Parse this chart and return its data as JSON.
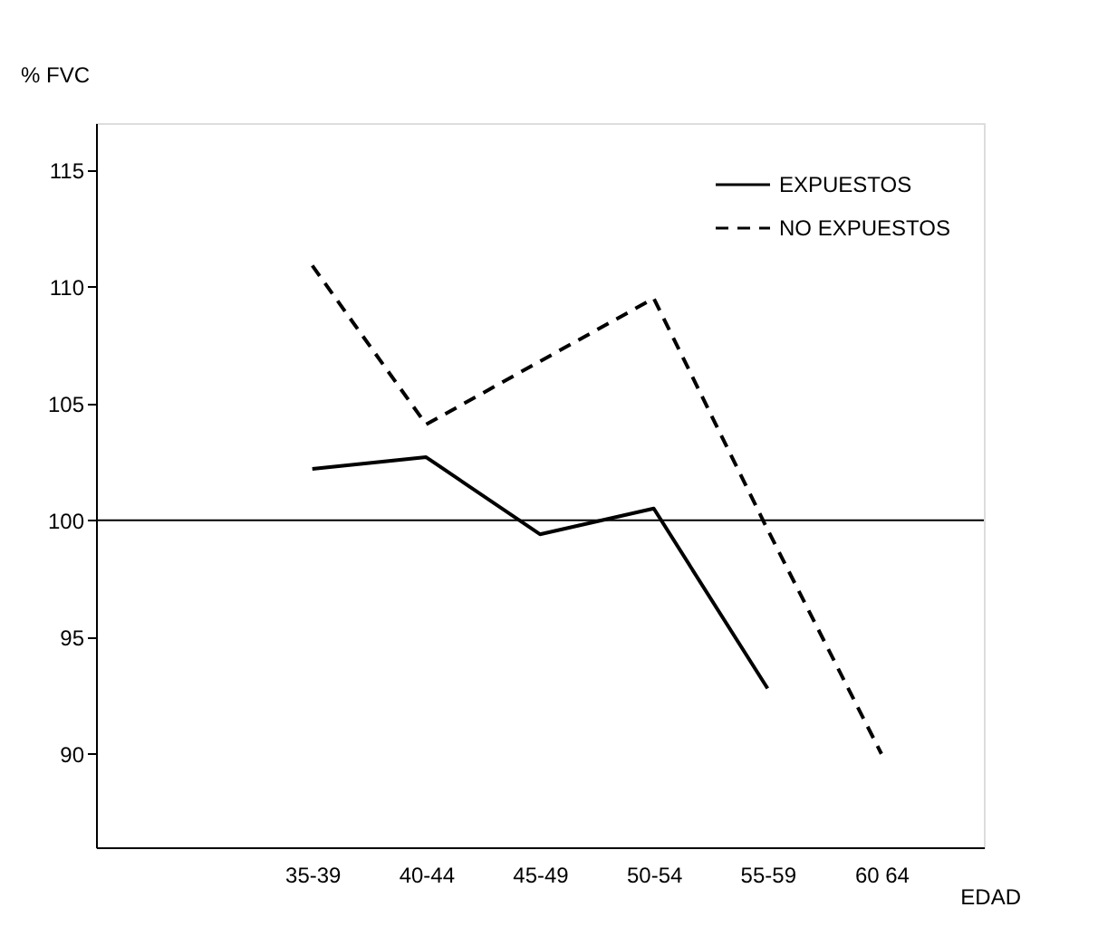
{
  "chart_data": {
    "type": "line",
    "xlabel": "EDAD",
    "ylabel": "% FVC",
    "categories": [
      "35-39",
      "40-44",
      "45-49",
      "50-54",
      "55-59",
      "60 64"
    ],
    "series": [
      {
        "name": "EXPUESTOS",
        "color": "#000000",
        "line_style": "solid",
        "values": [
          102.2,
          102.7,
          99.4,
          100.5,
          92.8,
          null
        ]
      },
      {
        "name": "NO EXPUESTOS",
        "color": "#000000",
        "line_style": "dashed",
        "values": [
          110.9,
          104.1,
          106.8,
          109.5,
          99.6,
          90.0
        ]
      }
    ],
    "ylim": [
      86,
      117
    ],
    "yticks": [
      90,
      95,
      100,
      105,
      110,
      115
    ],
    "ref_lines": [
      {
        "axis": "y",
        "value": 100,
        "color": "#000000"
      }
    ],
    "legend": "top right",
    "grid": false,
    "marker": "none"
  }
}
